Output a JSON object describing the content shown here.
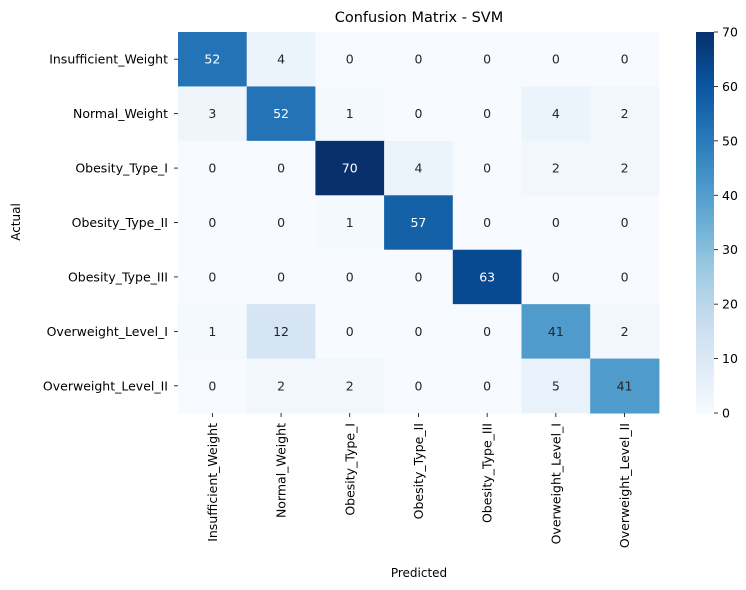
{
  "chart_data": {
    "type": "heatmap",
    "title": "Confusion Matrix - SVM",
    "xlabel": "Predicted",
    "ylabel": "Actual",
    "x_categories": [
      "Insufficient_Weight",
      "Normal_Weight",
      "Obesity_Type_I",
      "Obesity_Type_II",
      "Obesity_Type_III",
      "Overweight_Level_I",
      "Overweight_Level_II"
    ],
    "y_categories": [
      "Insufficient_Weight",
      "Normal_Weight",
      "Obesity_Type_I",
      "Obesity_Type_II",
      "Obesity_Type_III",
      "Overweight_Level_I",
      "Overweight_Level_II"
    ],
    "values": [
      [
        52,
        4,
        0,
        0,
        0,
        0,
        0
      ],
      [
        3,
        52,
        1,
        0,
        0,
        4,
        2
      ],
      [
        0,
        0,
        70,
        4,
        0,
        2,
        2
      ],
      [
        0,
        0,
        1,
        57,
        0,
        0,
        0
      ],
      [
        0,
        0,
        0,
        0,
        63,
        0,
        0
      ],
      [
        1,
        12,
        0,
        0,
        0,
        41,
        2
      ],
      [
        0,
        2,
        2,
        0,
        0,
        5,
        41
      ]
    ],
    "colormap": "Blues",
    "vmin": 0,
    "vmax": 70,
    "colorbar_ticks": [
      0,
      10,
      20,
      30,
      40,
      50,
      60,
      70
    ]
  }
}
